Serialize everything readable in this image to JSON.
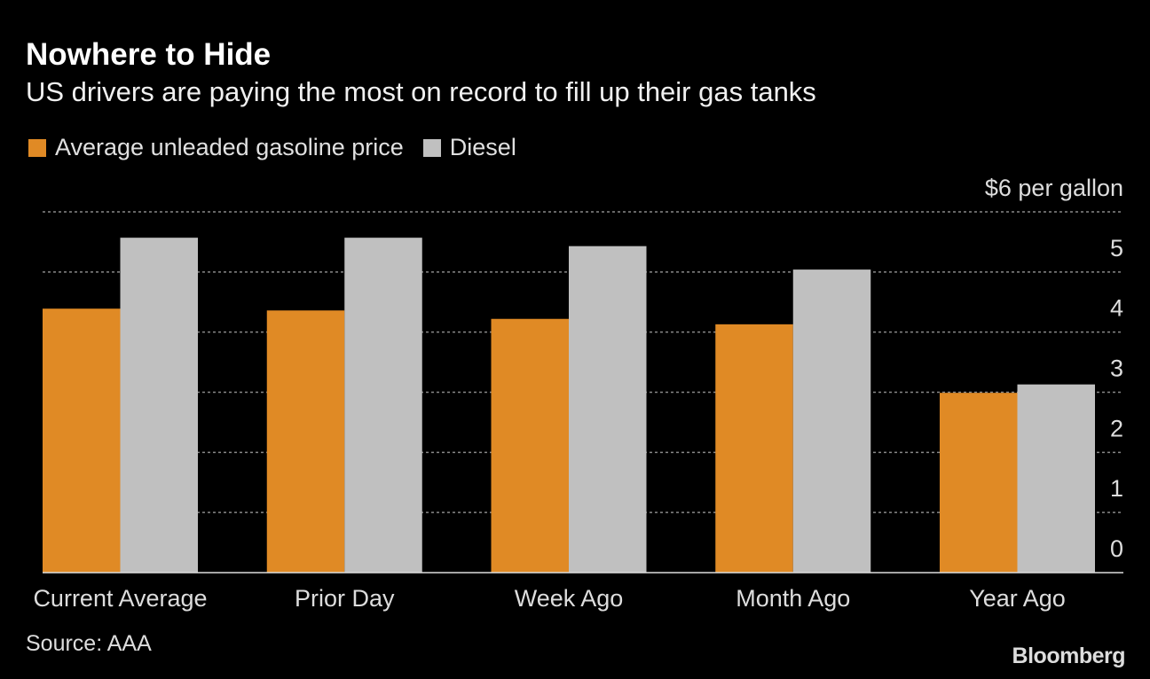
{
  "title": "Nowhere to Hide",
  "subtitle": "US drivers are paying the most on record to fill up their gas tanks",
  "source": "Source: AAA",
  "logo": "Bloomberg",
  "colors": {
    "gasoline": "#e08a25",
    "diesel": "#c0c0c0",
    "background": "#000000",
    "grid": "#888888"
  },
  "chart_data": {
    "type": "bar",
    "title": "Nowhere to Hide",
    "subtitle": "US drivers are paying the most on record to fill up their gas tanks",
    "categories": [
      "Current Average",
      "Prior Day",
      "Week Ago",
      "Month Ago",
      "Year Ago"
    ],
    "series": [
      {
        "name": "Average unleaded gasoline price",
        "values": [
          4.39,
          4.36,
          4.22,
          4.13,
          2.99
        ]
      },
      {
        "name": "Diesel",
        "values": [
          5.57,
          5.57,
          5.43,
          5.04,
          3.13
        ]
      }
    ],
    "ylim": [
      0,
      6
    ],
    "yticks": [
      "0",
      "1",
      "2",
      "3",
      "4",
      "5",
      "$6 per gallon"
    ],
    "ytick_values": [
      0,
      1,
      2,
      3,
      4,
      5,
      6
    ],
    "y_axis_side": "right",
    "grid": true,
    "legend": "top-left"
  }
}
